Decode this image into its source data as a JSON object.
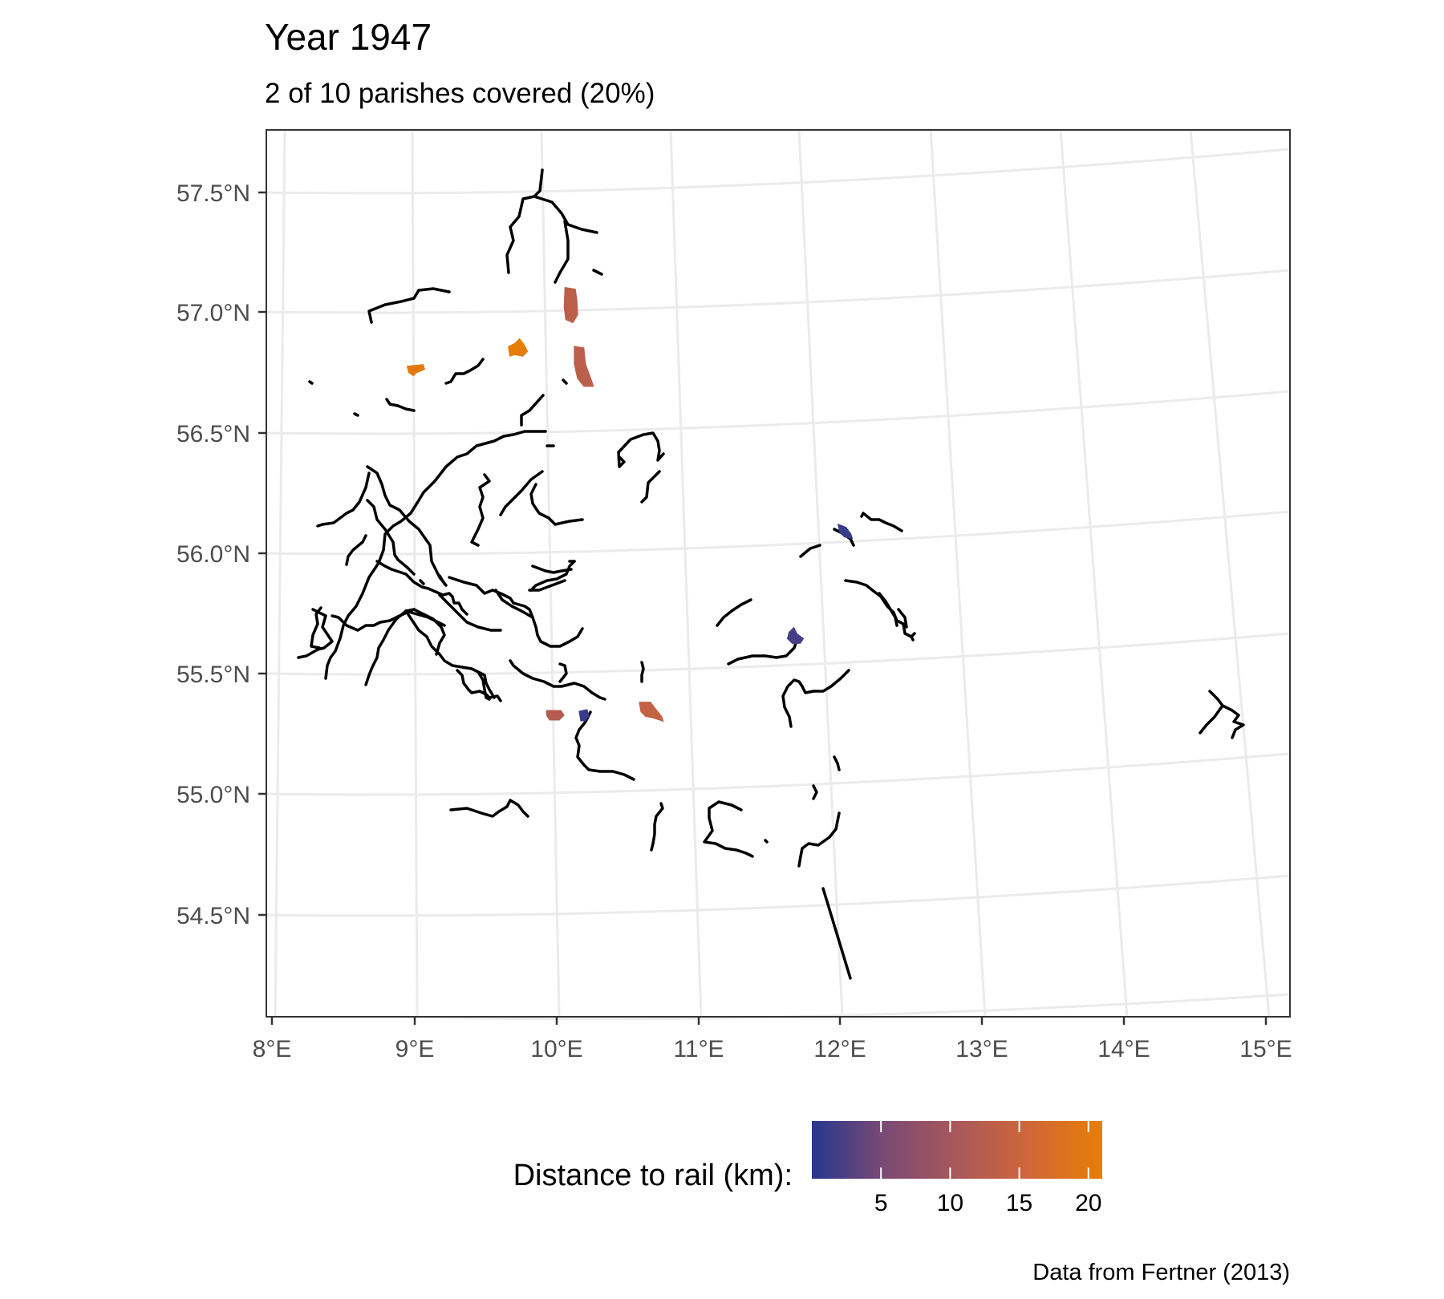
{
  "title": "Year 1947",
  "subtitle": "2 of 10 parishes covered (20%)",
  "caption": "Data from Fertner (2013)",
  "map": {
    "lon_range": [
      8,
      15
    ],
    "lat_range": [
      54.5,
      57.5
    ],
    "x_ticks": [
      "8°E",
      "9°E",
      "10°E",
      "11°E",
      "12°E",
      "13°E",
      "14°E",
      "15°E"
    ],
    "y_ticks": [
      "57.5°N",
      "57.0°N",
      "56.5°N",
      "56.0°N",
      "55.5°N",
      "55.0°N",
      "54.5°N"
    ],
    "grid": true,
    "rail_color": "#000000",
    "panel_border_color": "#333333"
  },
  "legend": {
    "title": "Distance to rail (km):",
    "position": "bottom",
    "ticks": [
      "5",
      "10",
      "15",
      "20"
    ],
    "tick_values": [
      5,
      10,
      15,
      20
    ],
    "range": [
      0,
      21
    ],
    "colors": [
      "#27378f",
      "#7b4a74",
      "#a9585a",
      "#cf6738",
      "#e87d05"
    ]
  },
  "parishes": [
    {
      "lon": 10.12,
      "lat": 57.06,
      "distance_km": 13
    },
    {
      "lon": 10.2,
      "lat": 56.8,
      "distance_km": 13
    },
    {
      "lon": 9.75,
      "lat": 56.88,
      "distance_km": 21
    },
    {
      "lon": 9.02,
      "lat": 56.83,
      "distance_km": 20
    },
    {
      "lon": 12.05,
      "lat": 56.06,
      "distance_km": 1
    },
    {
      "lon": 11.7,
      "lat": 55.63,
      "distance_km": 2
    },
    {
      "lon": 10.06,
      "lat": 55.36,
      "distance_km": 12
    },
    {
      "lon": 10.26,
      "lat": 55.35,
      "distance_km": 1
    },
    {
      "lon": 10.7,
      "lat": 55.36,
      "distance_km": 14
    }
  ]
}
